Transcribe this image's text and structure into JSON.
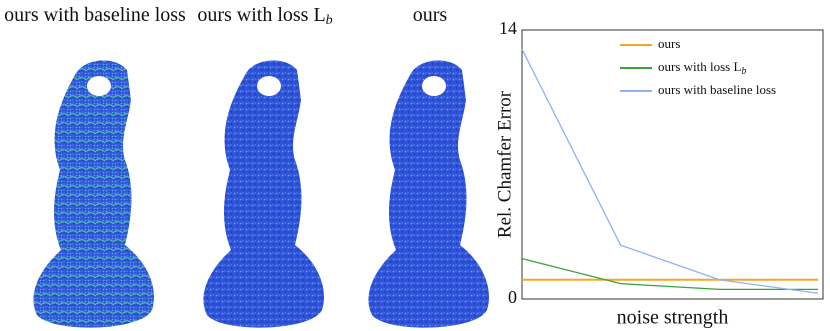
{
  "panels": [
    {
      "title": "ours with baseline loss"
    },
    {
      "title": "ours with loss L",
      "subscript": "b"
    },
    {
      "title": "ours"
    }
  ],
  "chart_data": {
    "type": "line",
    "y_label": "Rel. Chamfer Error",
    "x_label": "noise strength",
    "categories": [
      null,
      null,
      null,
      null
    ],
    "series": [
      {
        "name": "ours",
        "color": "#f5a623",
        "values": [
          1.0,
          1.0,
          1.0,
          1.0
        ]
      },
      {
        "name": "ours with loss L",
        "name_subscript": "b",
        "color": "#3aa23a",
        "values": [
          2.1,
          0.8,
          0.5,
          0.5
        ]
      },
      {
        "name": "ours with baseline loss",
        "color": "#8fb2f0",
        "values": [
          13.0,
          2.8,
          1.0,
          0.3
        ]
      }
    ],
    "ylim": [
      0,
      14
    ],
    "yticks": [
      0,
      14
    ],
    "grid": false,
    "legend": "top-right"
  }
}
